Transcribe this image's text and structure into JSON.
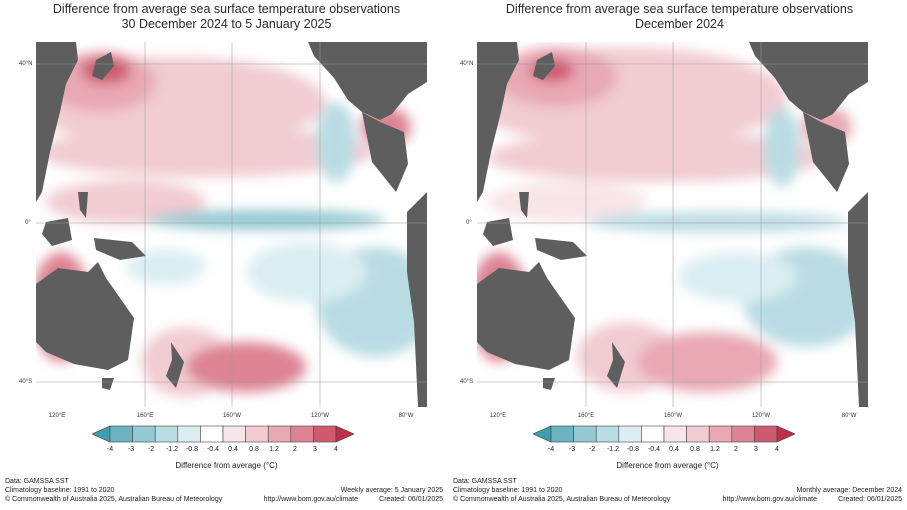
{
  "colors": {
    "land": "#5e5e5e",
    "grid": "#9a9a9a",
    "neutral": "#ffffff",
    "scale": [
      "#3f9db0",
      "#6ab3c1",
      "#94c9d3",
      "#b9dce3",
      "#dceef2",
      "#ffffff",
      "#f8e5e8",
      "#f1ccd2",
      "#e8a8b4",
      "#dd8393",
      "#cf5a6f",
      "#bd2f4c"
    ]
  },
  "legend": {
    "ticks": [
      "-4",
      "-3",
      "-2",
      "-1.2",
      "-0.8",
      "-0.4",
      "0.4",
      "0.8",
      "1.2",
      "2",
      "3",
      "4"
    ],
    "label": "Difference from average (°C)"
  },
  "axes": {
    "lat_labels": [
      "40°N",
      "0°",
      "40°S"
    ],
    "lon_labels": [
      "120°E",
      "160°E",
      "160°W",
      "120°W",
      "80°W"
    ]
  },
  "panels": [
    {
      "title_line1": "Difference from average sea surface temperature observations",
      "title_line2": "30 December 2024 to 5 January 2025",
      "footer_left": [
        "Data: GAMSSA SST",
        "Climatology baseline: 1991 to 2020",
        "© Commonwealth of Australia 2025, Australian Bureau of Meteorology"
      ],
      "footer_right": [
        "Weekly average: 5 January 2025",
        "http://www.bom.gov.au/climate",
        "Created: 06/01/2025"
      ]
    },
    {
      "title_line1": "Difference from average sea surface temperature observations",
      "title_line2": "December 2024",
      "footer_left": [
        "Data: GAMSSA SST",
        "Climatology baseline: 1991 to 2020",
        "© Commonwealth of Australia 2025, Australian Bureau of Meteorology"
      ],
      "footer_right": [
        "Monthly average: December 2024",
        "http://www.bom.gov.au/climate",
        "Created: 06/01/2025"
      ]
    }
  ]
}
